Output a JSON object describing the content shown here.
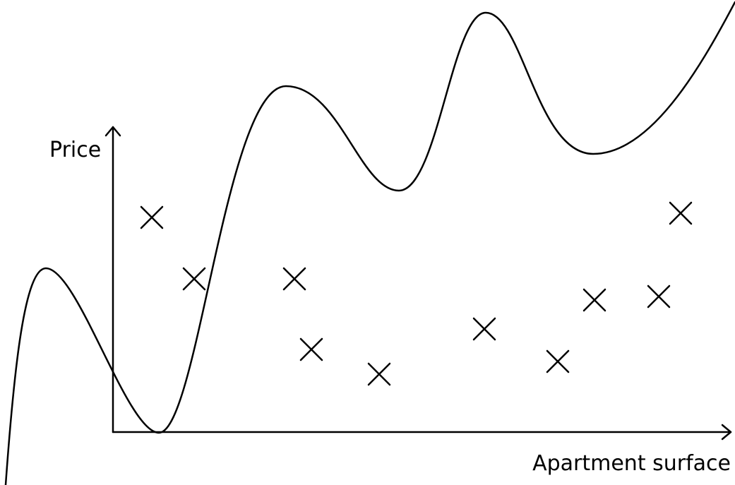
{
  "axes": {
    "y_label": "Price",
    "x_label": "Apartment surface"
  }
}
